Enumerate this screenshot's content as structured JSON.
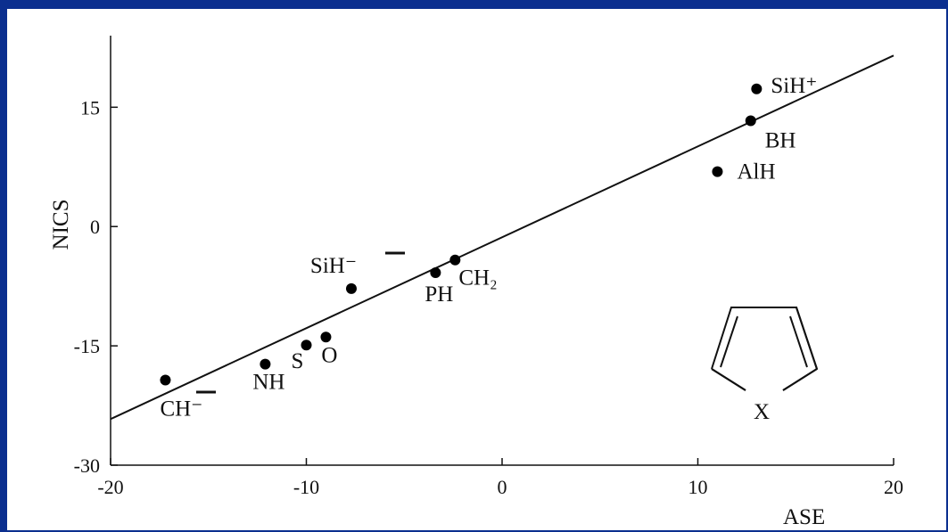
{
  "chart_data": {
    "type": "scatter",
    "title": "",
    "xlabel": "ASE",
    "ylabel": "NICS",
    "xlim": [
      -20,
      20
    ],
    "ylim": [
      -30,
      24
    ],
    "x_ticks": [
      "-20",
      "-10",
      "0",
      "10",
      "20"
    ],
    "y_ticks": [
      "-30",
      "-15",
      "0",
      "15"
    ],
    "grid": false,
    "points": [
      {
        "label": "CH⁻",
        "x": -17.2,
        "y": -19.3
      },
      {
        "label": "NH",
        "x": -12.1,
        "y": -17.3
      },
      {
        "label": "S",
        "x": -10.0,
        "y": -14.9
      },
      {
        "label": "O",
        "x": -9.0,
        "y": -13.9
      },
      {
        "label": "SiH⁻",
        "x": -7.7,
        "y": -7.8
      },
      {
        "label": "PH",
        "x": -3.4,
        "y": -5.8
      },
      {
        "label": "CH₂",
        "x": -2.4,
        "y": -4.2
      },
      {
        "label": "AlH",
        "x": 11.0,
        "y": 6.9
      },
      {
        "label": "BH",
        "x": 12.7,
        "y": 13.3
      },
      {
        "label": "SiH⁺",
        "x": 13.0,
        "y": 17.3
      }
    ],
    "fit_line": {
      "x": [
        -20,
        20
      ],
      "y": [
        -24.2,
        21.5
      ]
    },
    "inset_structure_label": "X",
    "colors": {
      "points": "#000000",
      "line": "#000000",
      "background": "#0b2f8f"
    }
  }
}
